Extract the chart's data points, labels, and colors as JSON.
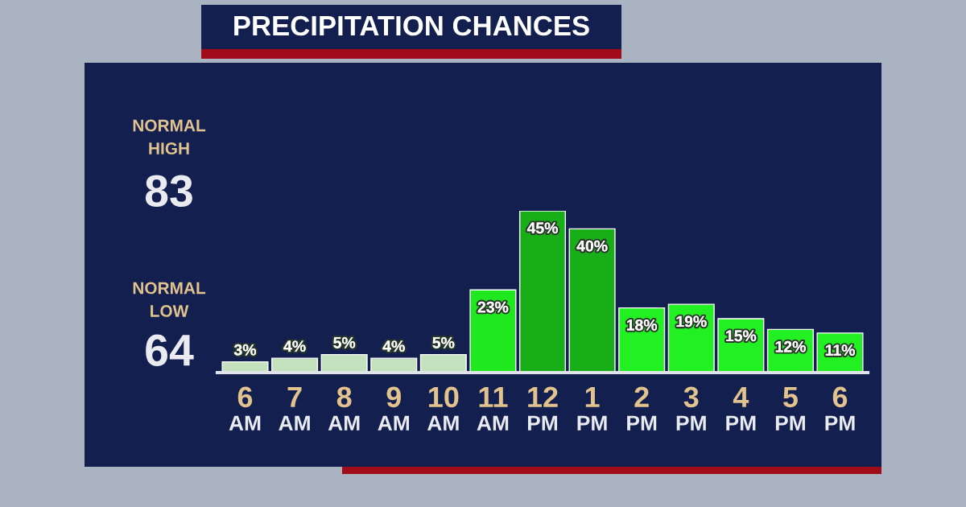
{
  "chart_data": {
    "type": "bar",
    "title": "PRECIPITATION CHANCES",
    "categories": [
      "6\nAM",
      "7\nAM",
      "8\nAM",
      "9\nAM",
      "10\nAM",
      "11\nAM",
      "12\nPM",
      "1\nPM",
      "2\nPM",
      "3\nPM",
      "4\nPM",
      "5\nPM",
      "6\nPM"
    ],
    "values": [
      3,
      4,
      5,
      4,
      5,
      23,
      45,
      40,
      18,
      19,
      15,
      12,
      11
    ],
    "colors": [
      "#c3e2bd",
      "#c3e2bd",
      "#c3e2bd",
      "#c3e2bd",
      "#c3e2bd",
      "#1fe81f",
      "#18ae18",
      "#18ae18",
      "#22f022",
      "#22f022",
      "#22f022",
      "#22f022",
      "#22f022"
    ],
    "value_labels": [
      "3%",
      "4%",
      "5%",
      "4%",
      "5%",
      "23%",
      "45%",
      "40%",
      "18%",
      "19%",
      "15%",
      "12%",
      "11%"
    ],
    "annotations": [
      "NORMAL\nHIGH",
      "83",
      "NORMAL\nLOW",
      "64"
    ]
  }
}
